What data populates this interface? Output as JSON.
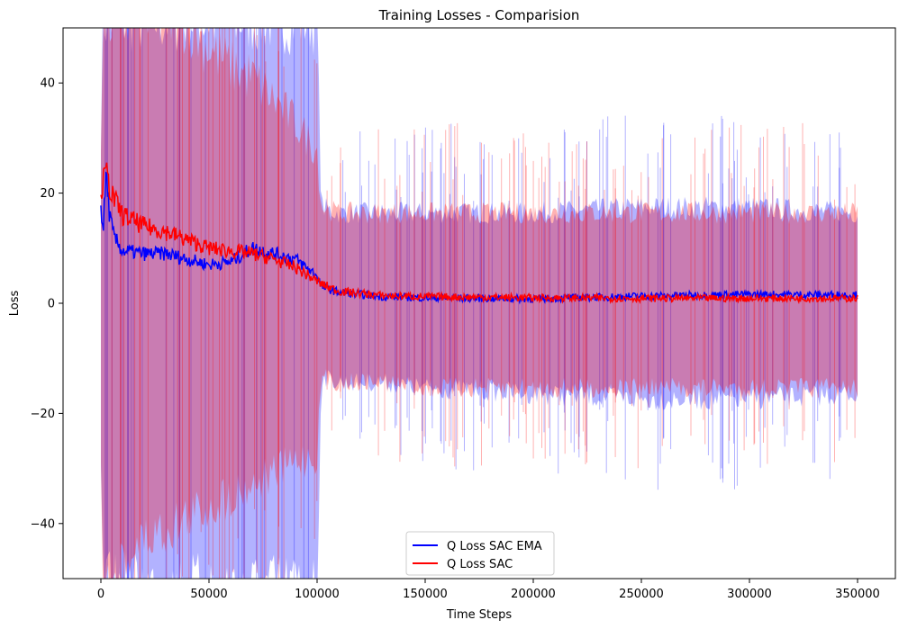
{
  "chart_data": {
    "type": "line",
    "title": "Training Losses - Comparision",
    "xlabel": "Time Steps",
    "ylabel": "Loss",
    "xlim": [
      -17500,
      367500
    ],
    "ylim": [
      -50,
      50
    ],
    "xticks": [
      0,
      50000,
      100000,
      150000,
      200000,
      250000,
      300000,
      350000
    ],
    "xtick_labels": [
      "0",
      "50000",
      "100000",
      "150000",
      "200000",
      "250000",
      "300000",
      "350000"
    ],
    "yticks": [
      -40,
      -20,
      0,
      20,
      40
    ],
    "ytick_labels": [
      "−40",
      "−20",
      "0",
      "20",
      "40"
    ],
    "grid": false,
    "legend": {
      "placement": "lower-center",
      "entries": [
        "Q Loss SAC EMA",
        "Q Loss SAC"
      ]
    },
    "series": [
      {
        "name": "Q Loss SAC EMA",
        "color": "#0000ff",
        "band_color": "#0000ff",
        "band_opacity": 0.3,
        "x": [
          0,
          1000,
          2500,
          4000,
          6000,
          10000,
          20000,
          30000,
          40000,
          50000,
          60000,
          70000,
          80000,
          90000,
          100000,
          102000,
          110000,
          130000,
          150000,
          200000,
          250000,
          300000,
          350000
        ],
        "mean": [
          18,
          13,
          24,
          16,
          12,
          9.5,
          9,
          9,
          8,
          7,
          7.5,
          10,
          9,
          8,
          5,
          3,
          2,
          1.2,
          1,
          0.8,
          1.3,
          1.6,
          1.5
        ],
        "band_upper": [
          30,
          50,
          50,
          50,
          50,
          50,
          50,
          50,
          50,
          50,
          50,
          50,
          50,
          50,
          50,
          17,
          16,
          16,
          16,
          16,
          17,
          17,
          16
        ],
        "band_lower": [
          -30,
          -50,
          -50,
          -50,
          -50,
          -50,
          -50,
          -50,
          -50,
          -50,
          -50,
          -50,
          -50,
          -50,
          -50,
          -13,
          -14,
          -14,
          -15,
          -16,
          -17,
          -17,
          -16
        ]
      },
      {
        "name": "Q Loss SAC",
        "color": "#ff0000",
        "band_color": "#ff0000",
        "band_opacity": 0.3,
        "x": [
          0,
          1000,
          2500,
          4000,
          6000,
          10000,
          20000,
          30000,
          40000,
          50000,
          60000,
          70000,
          80000,
          90000,
          100000,
          102000,
          110000,
          130000,
          150000,
          200000,
          250000,
          300000,
          350000
        ],
        "mean": [
          20,
          22,
          24,
          21,
          19,
          16,
          14,
          13,
          11.5,
          10,
          9.5,
          9,
          8,
          6.5,
          4,
          3.5,
          2.2,
          1.4,
          1.2,
          1,
          0.9,
          0.9,
          0.9
        ],
        "band_upper": [
          30,
          50,
          50,
          50,
          50,
          50,
          50,
          50,
          50,
          45,
          42,
          40,
          36,
          32,
          27,
          17,
          16,
          16,
          16,
          16,
          16,
          16,
          16
        ],
        "band_lower": [
          -30,
          -50,
          -50,
          -50,
          -50,
          -45,
          -42,
          -40,
          -38,
          -36,
          -34,
          -32,
          -30,
          -28,
          -27,
          -13,
          -14,
          -14,
          -15,
          -15,
          -15,
          -15,
          -15
        ]
      }
    ]
  }
}
